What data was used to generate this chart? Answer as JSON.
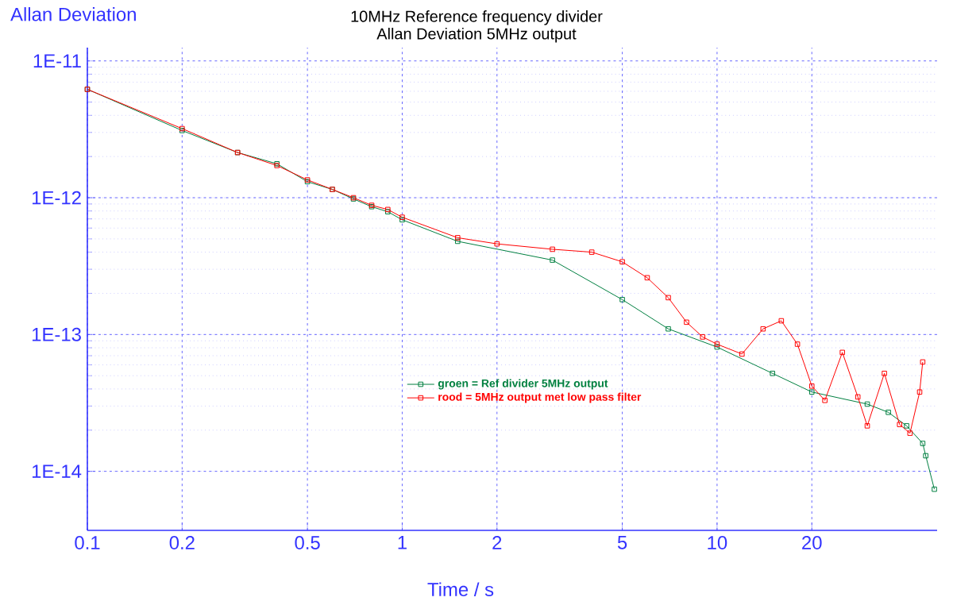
{
  "chart_data": {
    "type": "line",
    "title": "10MHz Reference frequency divider",
    "subtitle": "Allan Deviation 5MHz output",
    "xlabel": "Time / s",
    "ylabel": "Allan Deviation",
    "log": "xy",
    "grid": true,
    "marker": "square",
    "legend": "bottom",
    "xlim": [
      0.1,
      50
    ],
    "ylim": [
      3.7e-15,
      1.25e-11
    ],
    "xticks": [
      0.1,
      0.2,
      0.5,
      1,
      2,
      5,
      10,
      20
    ],
    "yticks": [
      {
        "value": 1e-14,
        "label": "1E-14"
      },
      {
        "value": 1e-13,
        "label": "1E-13"
      },
      {
        "value": 1e-12,
        "label": "1E-12"
      },
      {
        "value": 1e-11,
        "label": "1E-11"
      }
    ],
    "series": [
      {
        "name": "groen = Ref divider 5MHz output",
        "color": "#008040",
        "x": [
          0.1,
          0.2,
          0.3,
          0.4,
          0.5,
          0.6,
          0.7,
          0.8,
          0.9,
          1,
          1.5,
          3,
          5,
          7,
          10,
          15,
          20,
          30,
          35,
          40,
          45,
          46,
          49
        ],
        "values": [
          6.2e-12,
          3.1e-12,
          2.14e-12,
          1.77e-12,
          1.31e-12,
          1.15e-12,
          9.8e-13,
          8.6e-13,
          7.9e-13,
          6.9e-13,
          4.8e-13,
          3.5e-13,
          1.8e-13,
          1.1e-13,
          8.1e-14,
          5.2e-14,
          3.8e-14,
          3.1e-14,
          2.7e-14,
          2.15e-14,
          1.6e-14,
          1.3e-14,
          7.4e-15
        ]
      },
      {
        "name": "rood  = 5MHz output met low pass filter",
        "color": "#ff0000",
        "x": [
          0.1,
          0.2,
          0.3,
          0.4,
          0.5,
          0.6,
          0.7,
          0.8,
          0.9,
          1,
          1.5,
          2,
          3,
          4,
          5,
          6,
          7,
          8,
          9,
          10,
          12,
          14,
          16,
          18,
          20,
          22,
          25,
          28,
          30,
          34,
          38,
          41,
          44,
          45
        ],
        "values": [
          6.2e-12,
          3.2e-12,
          2.14e-12,
          1.72e-12,
          1.35e-12,
          1.15e-12,
          1e-12,
          8.8e-13,
          8.2e-13,
          7.2e-13,
          5.1e-13,
          4.6e-13,
          4.2e-13,
          4e-13,
          3.4e-13,
          2.6e-13,
          1.86e-13,
          1.23e-13,
          9.6e-14,
          8.5e-14,
          7.2e-14,
          1.1e-13,
          1.26e-13,
          8.5e-14,
          4.2e-14,
          3.3e-14,
          7.4e-14,
          3.5e-14,
          2.15e-14,
          5.2e-14,
          2.2e-14,
          1.9e-14,
          3.8e-14,
          6.3e-14
        ]
      }
    ]
  }
}
